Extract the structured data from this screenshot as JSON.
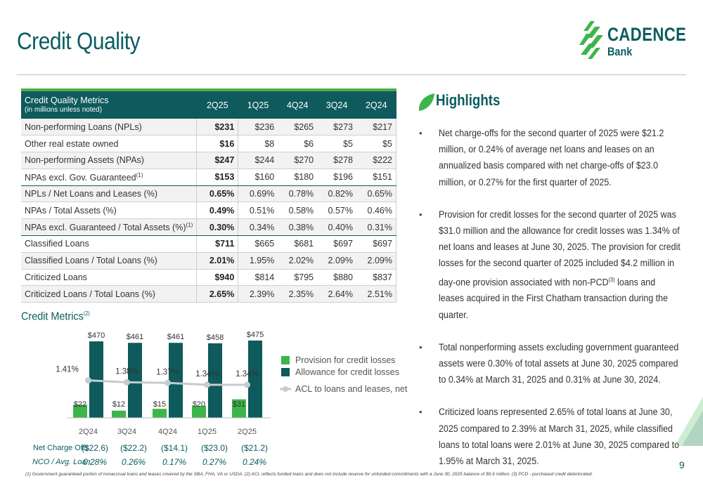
{
  "title": "Credit Quality",
  "logo": {
    "name": "CADENCE",
    "sub": "Bank"
  },
  "table": {
    "header": {
      "metric": "Credit Quality Metrics",
      "metric_sub": "(in millions unless noted)",
      "periods": [
        "2Q25",
        "1Q25",
        "4Q24",
        "3Q24",
        "2Q24"
      ]
    },
    "rows": [
      {
        "label": "Non-performing Loans (NPLs)",
        "sup": "",
        "values": [
          "$231",
          "$236",
          "$265",
          "$273",
          "$217"
        ]
      },
      {
        "label": "Other real estate owned",
        "sup": "",
        "values": [
          "$16",
          "$8",
          "$6",
          "$5",
          "$5"
        ]
      },
      {
        "label": "Non-performing Assets (NPAs)",
        "sup": "",
        "values": [
          "$247",
          "$244",
          "$270",
          "$278",
          "$222"
        ]
      },
      {
        "label": "NPAs excl. Gov. Guaranteed",
        "sup": "(1)",
        "values": [
          "$153",
          "$160",
          "$180",
          "$196",
          "$151"
        ]
      },
      {
        "label": "NPLs / Net Loans and Leases (%)",
        "sup": "",
        "values": [
          "0.65%",
          "0.69%",
          "0.78%",
          "0.82%",
          "0.65%"
        ]
      },
      {
        "label": "NPAs / Total Assets (%)",
        "sup": "",
        "values": [
          "0.49%",
          "0.51%",
          "0.58%",
          "0.57%",
          "0.46%"
        ]
      },
      {
        "label": "NPAs excl. Guaranteed / Total Assets (%)",
        "sup": "(1)",
        "values": [
          "0.30%",
          "0.34%",
          "0.38%",
          "0.40%",
          "0.31%"
        ]
      },
      {
        "label": "Classified Loans",
        "sup": "",
        "values": [
          "$711",
          "$665",
          "$681",
          "$697",
          "$697"
        ]
      },
      {
        "label": "Classified Loans / Total Loans (%)",
        "sup": "",
        "values": [
          "2.01%",
          "1.95%",
          "2.02%",
          "2.09%",
          "2.09%"
        ]
      },
      {
        "label": "Criticized Loans",
        "sup": "",
        "values": [
          "$940",
          "$814",
          "$795",
          "$880",
          "$837"
        ]
      },
      {
        "label": "Criticized Loans / Total Loans (%)",
        "sup": "",
        "values": [
          "2.65%",
          "2.39%",
          "2.35%",
          "2.64%",
          "2.51%"
        ]
      }
    ]
  },
  "chart_title": "Credit Metrics",
  "chart_title_sup": "(2)",
  "chart_data": {
    "type": "bar",
    "categories": [
      "2Q24",
      "3Q24",
      "4Q24",
      "1Q25",
      "2Q25"
    ],
    "series": [
      {
        "name": "Provision for credit losses",
        "values": [
          22,
          12,
          15,
          20,
          31
        ],
        "labels": [
          "$22",
          "$12",
          "$15",
          "$20",
          "$31"
        ],
        "color": "#3db54a"
      },
      {
        "name": "Allowance for credit losses",
        "values": [
          470,
          461,
          461,
          458,
          475
        ],
        "labels": [
          "$470",
          "$461",
          "$461",
          "$458",
          "$475"
        ],
        "color": "#0e5a5c"
      },
      {
        "name": "ACL to loans and leases, net",
        "type": "line",
        "values": [
          1.41,
          1.38,
          1.37,
          1.34,
          1.34
        ],
        "labels": [
          "1.41%",
          "1.38%",
          "1.37%",
          "1.34%",
          "1.34%"
        ],
        "color": "#c5cbce"
      }
    ]
  },
  "bottom": {
    "ncos_label": "Net Charge Offs",
    "nco_avg_label": "NCO / Avg. Loan",
    "ncos": [
      "($22.6)",
      "($22.2)",
      "($14.1)",
      "($23.0)",
      "($21.2)"
    ],
    "nco_avg": [
      "0.28%",
      "0.26%",
      "0.17%",
      "0.27%",
      "0.24%"
    ]
  },
  "footnote": "(1) Government guaranteed portion of nonaccrual loans and leases covered by the SBA, FHA, VA or USDA.  (2) ACL reflects funded loans and does not include reserve for unfunded commitments with a June 30, 2025 balance of $9.6 million. (3) PCD - purchased credit deteriorated.",
  "highlights": {
    "heading": "Highlights",
    "items": [
      {
        "text": "Net charge-offs for the second quarter of 2025 were $21.2 million, or 0.24% of average net loans and leases on an annualized basis compared with net charge-offs of $23.0 million, or 0.27% for the first quarter of 2025."
      },
      {
        "text_a": "Provision for credit losses for the second quarter of 2025 was $31.0 million and the allowance for credit losses was 1.34% of net loans and leases at June 30, 2025. The provision for credit losses for the second quarter of 2025 included $4.2 million in day-one provision associated with non-PCD",
        "sup": "(3)",
        "text_b": " loans and leases acquired in the First Chatham transaction during the quarter."
      },
      {
        "text": "Total nonperforming assets excluding government guaranteed assets were 0.30% of total assets at June 30, 2025 compared to 0.34% at March 31, 2025 and 0.31% at June 30, 2024."
      },
      {
        "text": "Criticized loans represented 2.65% of total loans at June 30, 2025 compared to 2.39% at March 31, 2025, while classified loans to total loans were 2.01% at June 30, 2025 compared to 1.95% at March 31, 2025."
      }
    ]
  },
  "page_number": "9",
  "colors": {
    "brand": "#0b5c5f",
    "accent": "#3db54a",
    "header_bg": "#0e5a5c"
  }
}
